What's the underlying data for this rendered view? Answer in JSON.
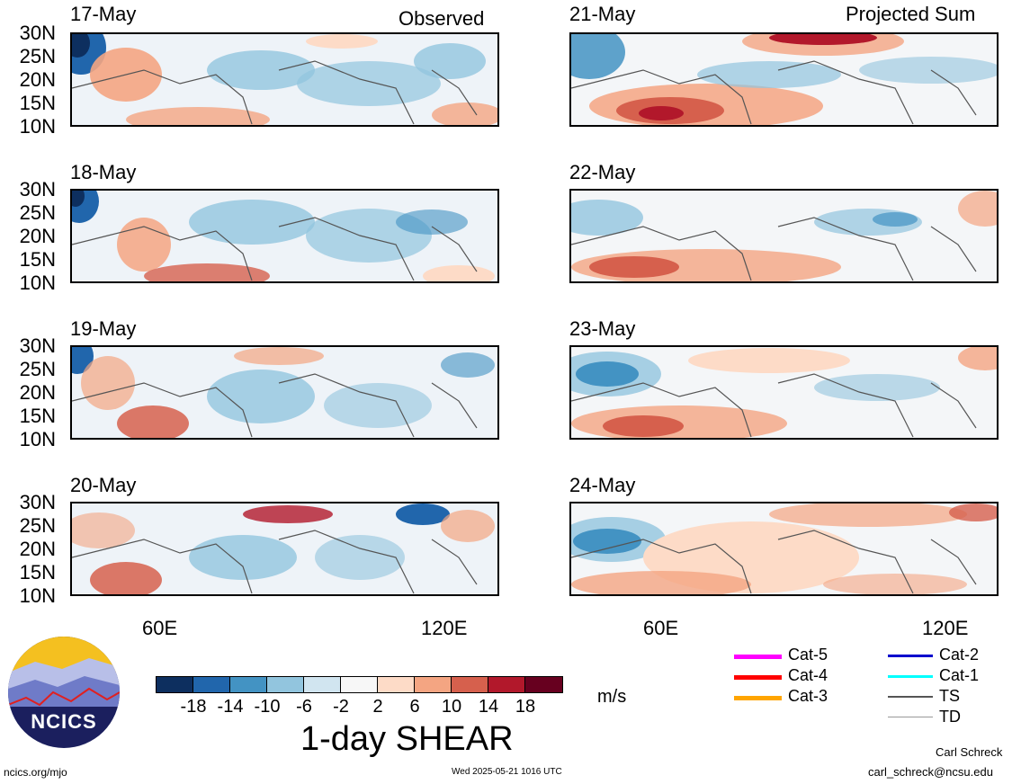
{
  "headers": {
    "left": "Observed",
    "right": "Projected Sum"
  },
  "panels_left": [
    {
      "date": "17-May"
    },
    {
      "date": "18-May"
    },
    {
      "date": "19-May"
    },
    {
      "date": "20-May"
    }
  ],
  "panels_right": [
    {
      "date": "21-May"
    },
    {
      "date": "22-May"
    },
    {
      "date": "23-May"
    },
    {
      "date": "24-May"
    }
  ],
  "lat_labels": [
    "30N",
    "25N",
    "20N",
    "15N",
    "10N"
  ],
  "lon_labels": [
    "60E",
    "120E"
  ],
  "colorbar": {
    "labels": [
      "-18",
      "-14",
      "-10",
      "-6",
      "-2",
      "2",
      "6",
      "10",
      "14",
      "18"
    ],
    "colors": [
      "#0d2f5f",
      "#2166ac",
      "#4393c3",
      "#92c5de",
      "#d1e5f0",
      "#f7f7f7",
      "#fddbc7",
      "#f4a582",
      "#d6604d",
      "#b2182b",
      "#67001f"
    ],
    "unit": "m/s",
    "title": "1-day SHEAR"
  },
  "legend": [
    {
      "label": "Cat-5",
      "color": "#ff00ff"
    },
    {
      "label": "Cat-4",
      "color": "#ff0000"
    },
    {
      "label": "Cat-3",
      "color": "#ffa500"
    },
    {
      "label": "Cat-2",
      "color": "#0000cd"
    },
    {
      "label": "Cat-1",
      "color": "#00ffff"
    },
    {
      "label": "TS",
      "color": "#555555"
    },
    {
      "label": "TD",
      "color": "#999999"
    }
  ],
  "logo_text": "NCICS",
  "footer": {
    "url": "ncics.org/mjo",
    "timestamp": "Wed 2025-05-21 1016 UTC",
    "author": "Carl Schreck",
    "email": "carl_schreck@ncsu.edu"
  }
}
